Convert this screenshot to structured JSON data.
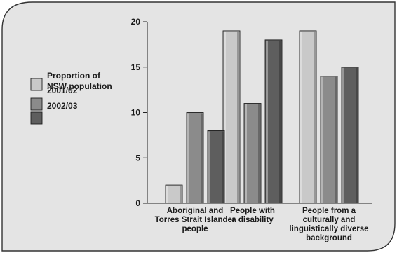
{
  "chart_data": {
    "type": "bar",
    "categories": [
      [
        "Aboriginal and",
        "Torres Strait Islander",
        "people"
      ],
      [
        "People with",
        "a disability"
      ],
      [
        "People from a",
        "culturally and",
        "linguistically diverse",
        "background"
      ]
    ],
    "series": [
      {
        "name": [
          "Proportion of",
          "NSW population"
        ],
        "values": [
          2,
          19,
          19
        ],
        "color": "#c9c9c9"
      },
      {
        "name": [
          "2001/02"
        ],
        "values": [
          10,
          11,
          14
        ],
        "color": "#8b8b8b"
      },
      {
        "name": [
          "2002/03"
        ],
        "values": [
          8,
          18,
          15
        ],
        "color": "#5e5e5e"
      }
    ],
    "yticks": [
      "0",
      "5",
      "10",
      "15",
      "20"
    ],
    "ylim": [
      0,
      20
    ],
    "legend_position": "left",
    "grid": false,
    "background": "#e4e4e4",
    "frame_color": "#333333"
  }
}
